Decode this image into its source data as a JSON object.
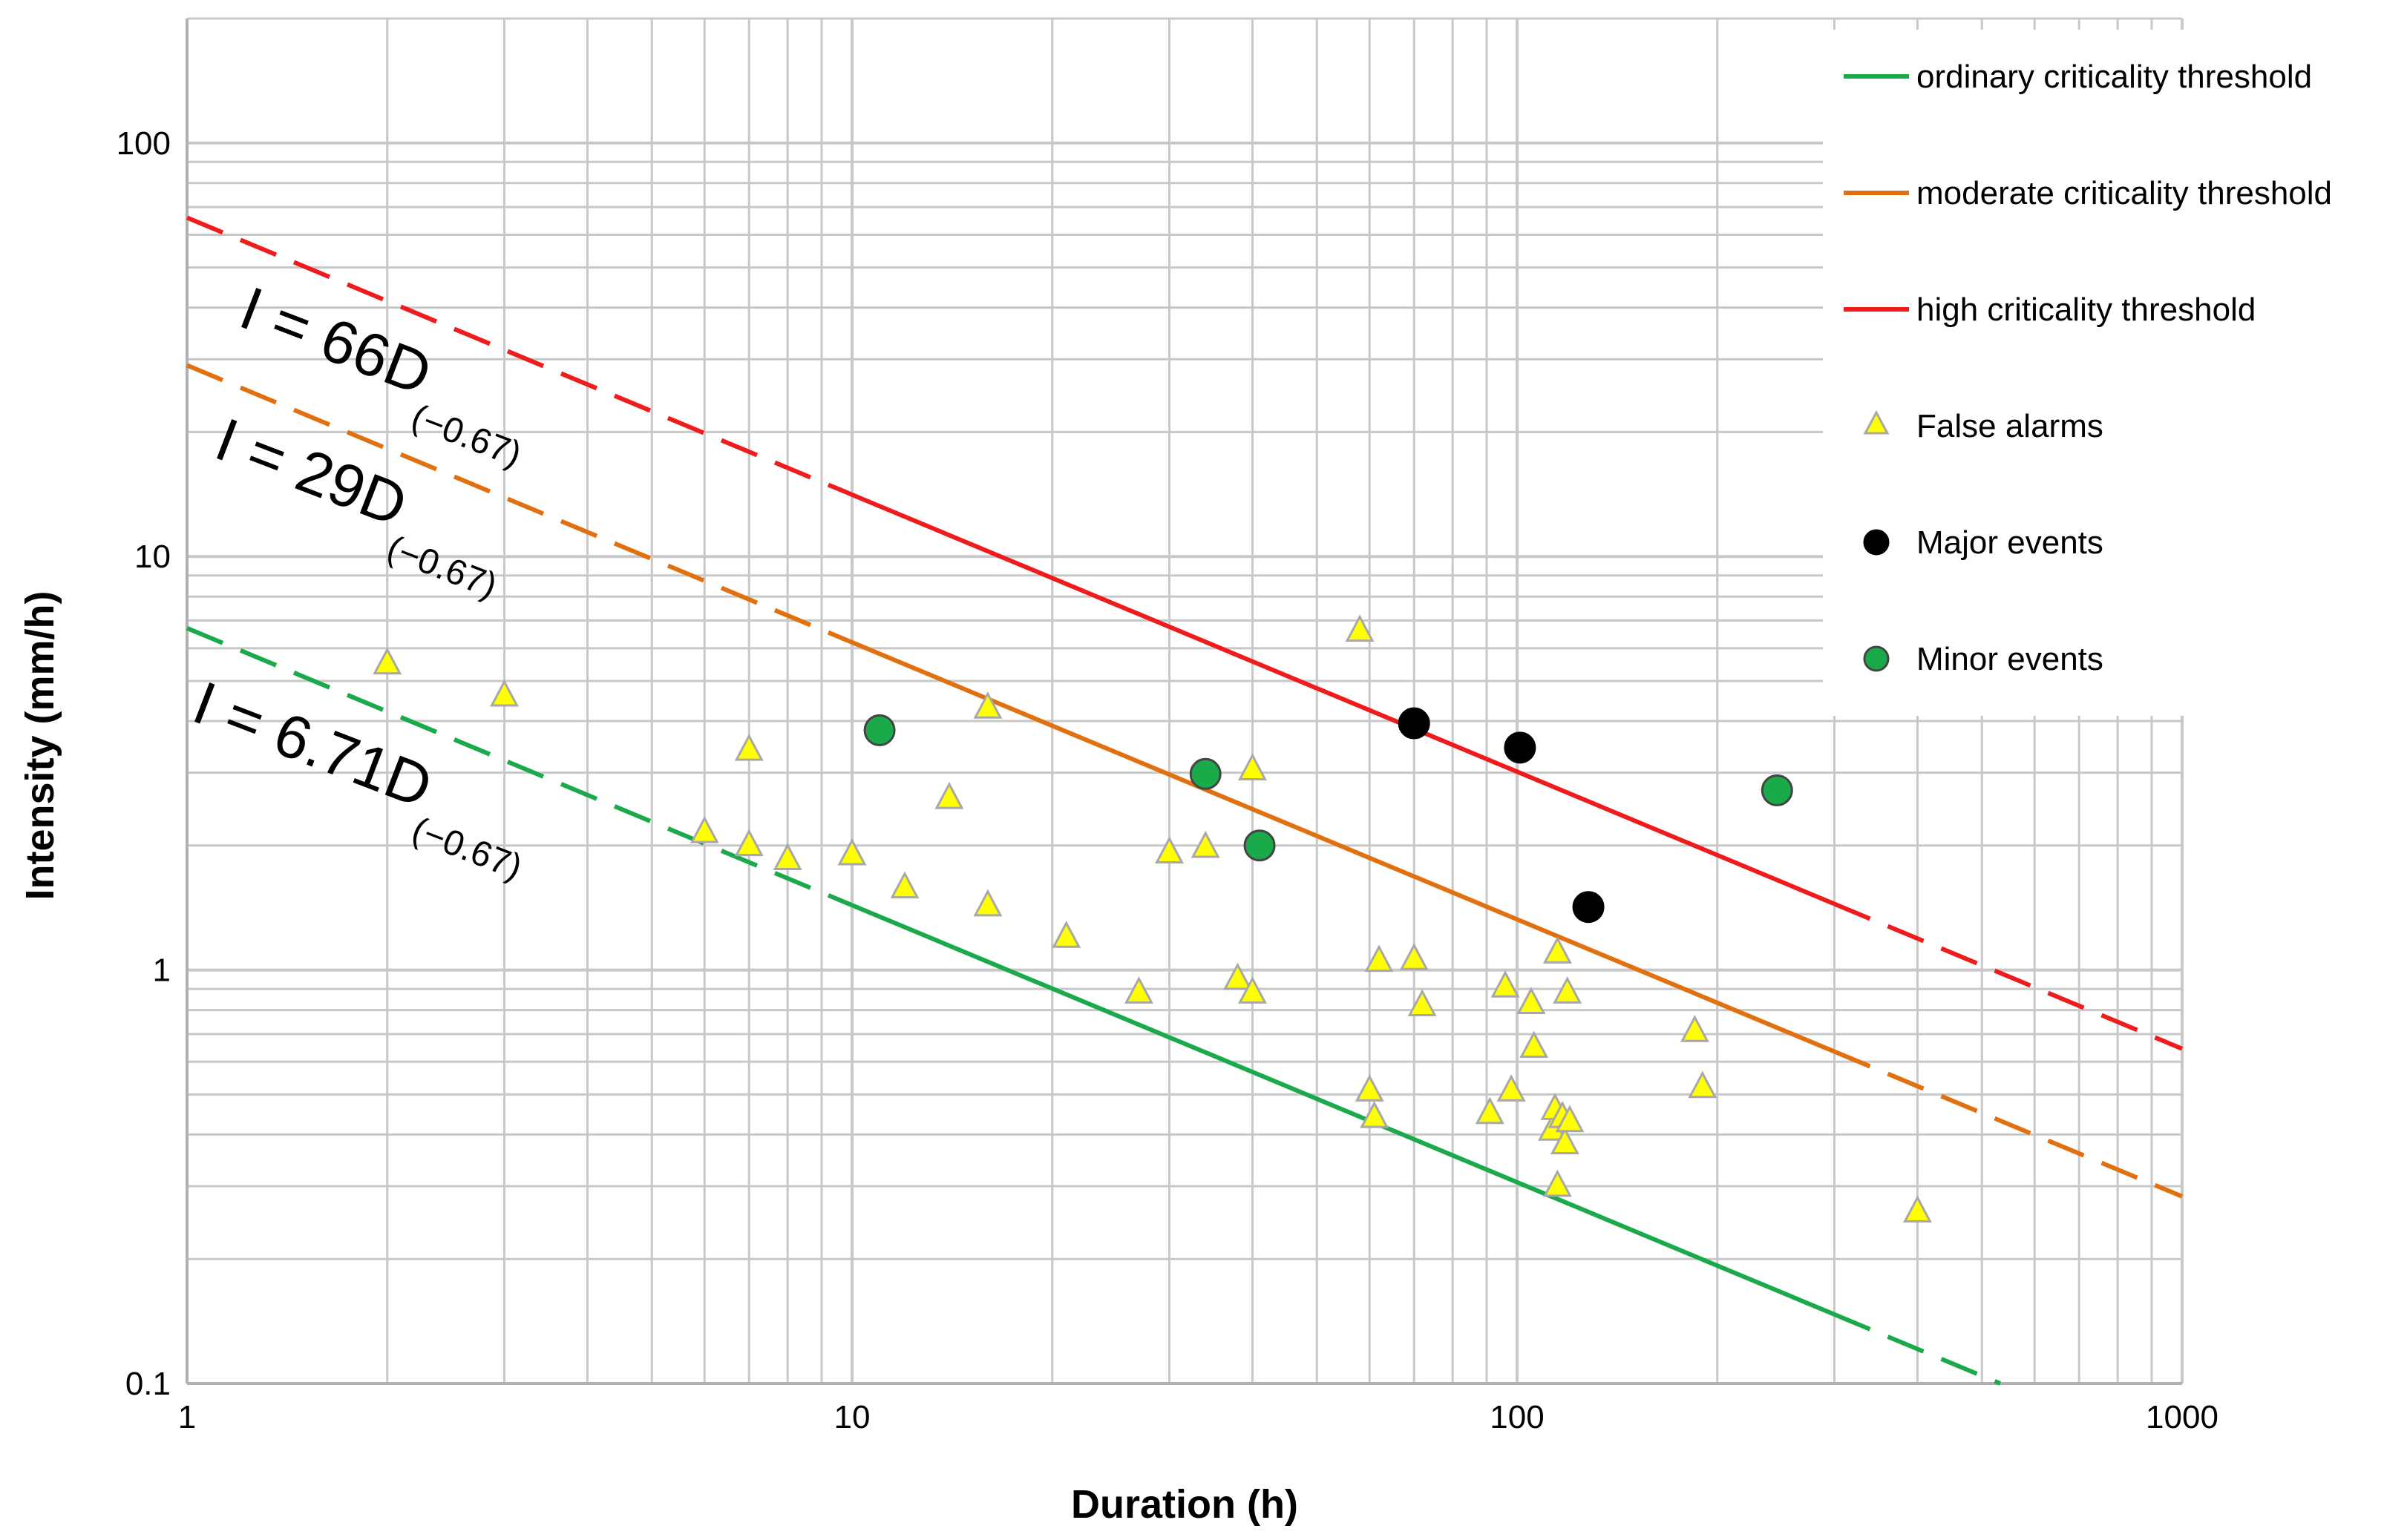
{
  "chart_data": {
    "type": "scatter",
    "title": "",
    "xlabel": "Duration (h)",
    "ylabel": "Intensity (mm/h)",
    "xscale": "log",
    "yscale": "log",
    "xlim": [
      1,
      1000
    ],
    "ylim": [
      0.1,
      200
    ],
    "grid": true,
    "legend_position": "top-right",
    "x_ticks": [
      {
        "value": 1,
        "label": "1"
      },
      {
        "value": 10,
        "label": "10"
      },
      {
        "value": 100,
        "label": "100"
      },
      {
        "value": 1000,
        "label": "1000"
      }
    ],
    "y_ticks": [
      {
        "value": 0.1,
        "label": "0.1"
      },
      {
        "value": 1,
        "label": "1"
      },
      {
        "value": 10,
        "label": "10"
      },
      {
        "value": 100,
        "label": "100"
      }
    ],
    "thresholds": [
      {
        "name": "ordinary criticality threshold",
        "color": "#1aaa4a",
        "a": 6.71,
        "b": -0.67,
        "solid_range": [
          10,
          300
        ],
        "equation": "I = 6.71D",
        "exponent": "(−0.67)"
      },
      {
        "name": "moderate criticality threshold",
        "color": "#e07010",
        "a": 29,
        "b": -0.67,
        "solid_range": [
          10,
          300
        ],
        "equation": "I = 29D",
        "exponent": "(−0.67)"
      },
      {
        "name": "high criticality threshold",
        "color": "#ee1c1c",
        "a": 66,
        "b": -0.67,
        "solid_range": [
          10,
          300
        ],
        "equation": "I = 66D",
        "exponent": "(−0.67)"
      }
    ],
    "series": [
      {
        "name": "False alarms",
        "marker": "triangle",
        "color": "#ffff00",
        "edge": "#a8a8a8",
        "points": [
          [
            2,
            5.5
          ],
          [
            3,
            4.6
          ],
          [
            6,
            2.15
          ],
          [
            7,
            3.4
          ],
          [
            7,
            2.0
          ],
          [
            8,
            1.85
          ],
          [
            10,
            1.9
          ],
          [
            12,
            1.58
          ],
          [
            14,
            2.6
          ],
          [
            16,
            4.3
          ],
          [
            16,
            1.43
          ],
          [
            21,
            1.2
          ],
          [
            27,
            0.88
          ],
          [
            30,
            1.92
          ],
          [
            34,
            1.98
          ],
          [
            38,
            0.95
          ],
          [
            40,
            0.88
          ],
          [
            40,
            3.05
          ],
          [
            58,
            6.6
          ],
          [
            60,
            0.51
          ],
          [
            61,
            0.44
          ],
          [
            62,
            1.05
          ],
          [
            70,
            1.06
          ],
          [
            72,
            0.82
          ],
          [
            91,
            0.45
          ],
          [
            96,
            0.91
          ],
          [
            98,
            0.51
          ],
          [
            105,
            0.83
          ],
          [
            106,
            0.65
          ],
          [
            113,
            0.41
          ],
          [
            114,
            0.46
          ],
          [
            115,
            1.1
          ],
          [
            115,
            0.3
          ],
          [
            117,
            0.44
          ],
          [
            118,
            0.38
          ],
          [
            119,
            0.88
          ],
          [
            120,
            0.43
          ],
          [
            185,
            0.71
          ],
          [
            190,
            0.52
          ],
          [
            400,
            0.26
          ]
        ]
      },
      {
        "name": "Major events",
        "marker": "circle",
        "color": "#000000",
        "edge": "#000000",
        "points": [
          [
            70,
            3.95
          ],
          [
            101,
            3.45
          ],
          [
            128,
            1.42
          ]
        ]
      },
      {
        "name": "Minor events",
        "marker": "circle",
        "color": "#1aaa4a",
        "edge": "#444444",
        "points": [
          [
            11,
            3.8
          ],
          [
            34,
            2.98
          ],
          [
            41,
            2.0
          ],
          [
            246,
            2.72
          ]
        ]
      }
    ]
  }
}
